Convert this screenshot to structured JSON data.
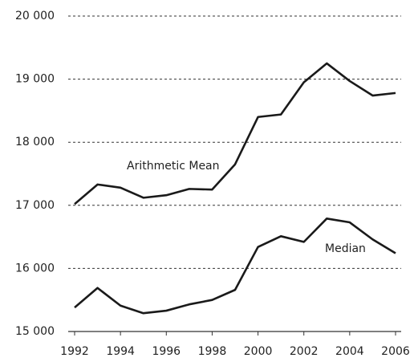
{
  "chart_data": {
    "type": "line",
    "x": [
      1992,
      1993,
      1994,
      1995,
      1996,
      1997,
      1998,
      1999,
      2000,
      2001,
      2002,
      2003,
      2004,
      2005,
      2006
    ],
    "series": [
      {
        "name": "Arithmetic Mean",
        "color": "#1a1a1a",
        "values": [
          17020,
          17330,
          17280,
          17120,
          17160,
          17260,
          17250,
          17650,
          18400,
          18440,
          18950,
          19250,
          18970,
          18740,
          18780
        ]
      },
      {
        "name": "Median",
        "color": "#1a1a1a",
        "values": [
          15380,
          15690,
          15410,
          15290,
          15330,
          15430,
          15500,
          15660,
          16340,
          16510,
          16420,
          16790,
          16730,
          16460,
          16240
        ]
      }
    ],
    "xlim": [
      1992,
      2006
    ],
    "xticks": [
      1992,
      1994,
      1996,
      1998,
      2000,
      2002,
      2004,
      2006
    ],
    "ylim": [
      15000,
      20000
    ],
    "yticks": [
      {
        "value": 15000,
        "label": "15 000"
      },
      {
        "value": 16000,
        "label": "16 000"
      },
      {
        "value": 17000,
        "label": "17 000"
      },
      {
        "value": 18000,
        "label": "18 000"
      },
      {
        "value": 19000,
        "label": "19 000"
      },
      {
        "value": 20000,
        "label": "20 000"
      }
    ],
    "grid": true
  }
}
